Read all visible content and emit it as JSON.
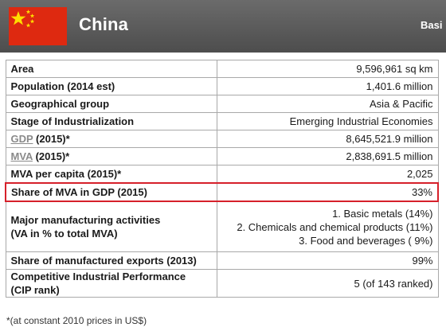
{
  "header": {
    "country": "China",
    "tab_text": "Basi"
  },
  "rows": {
    "area": {
      "label": "Area",
      "value": "9,596,961 sq km"
    },
    "population": {
      "label": "Population (2014 est)",
      "value": "1,401.6 million"
    },
    "geo": {
      "label": "Geographical group",
      "value": "Asia & Pacific"
    },
    "stage": {
      "label": "Stage of Industrialization",
      "value": "Emerging Industrial Economies"
    },
    "gdp": {
      "label_link": "GDP",
      "label_rest": " (2015)*",
      "value": "8,645,521.9 million"
    },
    "mva": {
      "label_link": "MVA",
      "label_rest": " (2015)*",
      "value": "2,838,691.5 million"
    },
    "mva_capita": {
      "label": "MVA per capita (2015)*",
      "value": "2,025"
    },
    "share_mva": {
      "label": "Share of MVA in GDP (2015)",
      "value": "33%"
    },
    "activities": {
      "label_line1": "Major manufacturing activities",
      "label_line2": "(VA in % to total MVA)",
      "items": [
        "1. Basic metals (14%)",
        "2. Chemicals and chemical products (11%)",
        "3. Food and beverages ( 9%)"
      ]
    },
    "exports": {
      "label": "Share of manufactured exports (2013)",
      "value": "99%"
    },
    "cip": {
      "label_line1": "Competitive Industrial Performance",
      "label_line2": "(CIP rank)",
      "value": "5 (of 143 ranked)"
    }
  },
  "footnote": "*(at constant 2010 prices in US$)",
  "colors": {
    "header_bg": "#5a5a5a",
    "flag_red": "#de2910",
    "flag_star": "#ffde00",
    "highlight_border": "#d6202a"
  }
}
